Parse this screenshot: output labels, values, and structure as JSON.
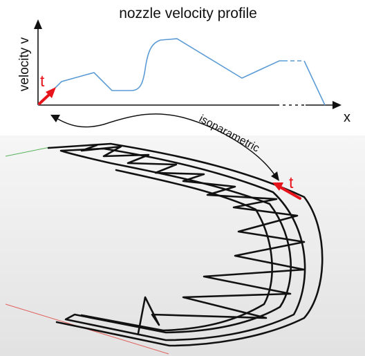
{
  "figure": {
    "title": "nozzle velocity profile",
    "y_axis_label": "velocity v",
    "x_axis_label": "x",
    "connector_label": "isoparametric",
    "tangent_label_plot": "t",
    "tangent_label_path": "t"
  },
  "colors": {
    "profile_line": "#5b9bd5",
    "tangent_arrow": "#e8141c",
    "path_stroke": "#111111",
    "ground_top": "#f6f6f6",
    "ground_bottom": "#e2e2e2",
    "grid_green": "#58b35a",
    "grid_red": "#e0605a"
  },
  "icons": {
    "tangent": "red-arrow",
    "connector": "double-headed-curved-arrow"
  }
}
